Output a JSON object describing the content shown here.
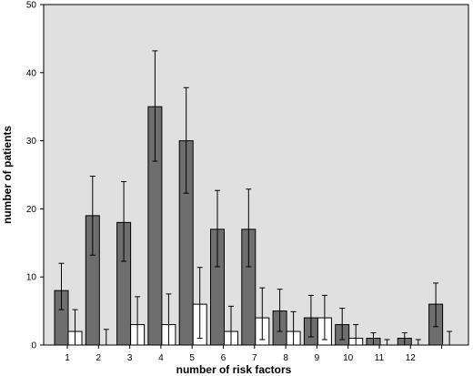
{
  "chart_data": {
    "type": "bar",
    "title": "",
    "xlabel": "number of risk factors",
    "ylabel": "number of patients",
    "ylim": [
      0,
      50
    ],
    "yticks": [
      0,
      10,
      20,
      30,
      40,
      50
    ],
    "categories": [
      "1",
      "2",
      "3",
      "4",
      "5",
      "6",
      "7",
      "8",
      "9",
      "10",
      "11",
      "12",
      ""
    ],
    "grid": false,
    "legend": "none",
    "error_bars": true,
    "colors": {
      "plot_background": "#e0e0e0",
      "series_dark": "#6e6e6e",
      "series_light": "#ffffff",
      "frame": "#000000"
    },
    "series": [
      {
        "values": [
          8,
          19,
          18,
          35,
          30,
          17,
          17,
          5,
          4,
          3,
          1,
          1,
          6
        ],
        "err_low": [
          5.2,
          13.2,
          12.3,
          27.0,
          22.3,
          11.5,
          11.5,
          2.0,
          1.2,
          0.8,
          0.0,
          0.0,
          2.7
        ],
        "err_high": [
          12.0,
          24.8,
          24.0,
          43.2,
          37.8,
          22.7,
          22.9,
          8.2,
          7.3,
          5.4,
          1.8,
          1.8,
          9.1
        ]
      },
      {
        "values": [
          2,
          0,
          3,
          3,
          6,
          2,
          4,
          2,
          4,
          1,
          0,
          0,
          0
        ],
        "err_low": [
          0.0,
          0.0,
          0.0,
          0.0,
          1.0,
          0.0,
          0.8,
          0.0,
          0.8,
          0.0,
          0.0,
          0.0,
          0.0
        ],
        "err_high": [
          5.2,
          2.3,
          7.1,
          7.5,
          11.4,
          5.7,
          8.4,
          4.9,
          7.3,
          3.0,
          0.8,
          0.8,
          2.0
        ]
      }
    ]
  }
}
